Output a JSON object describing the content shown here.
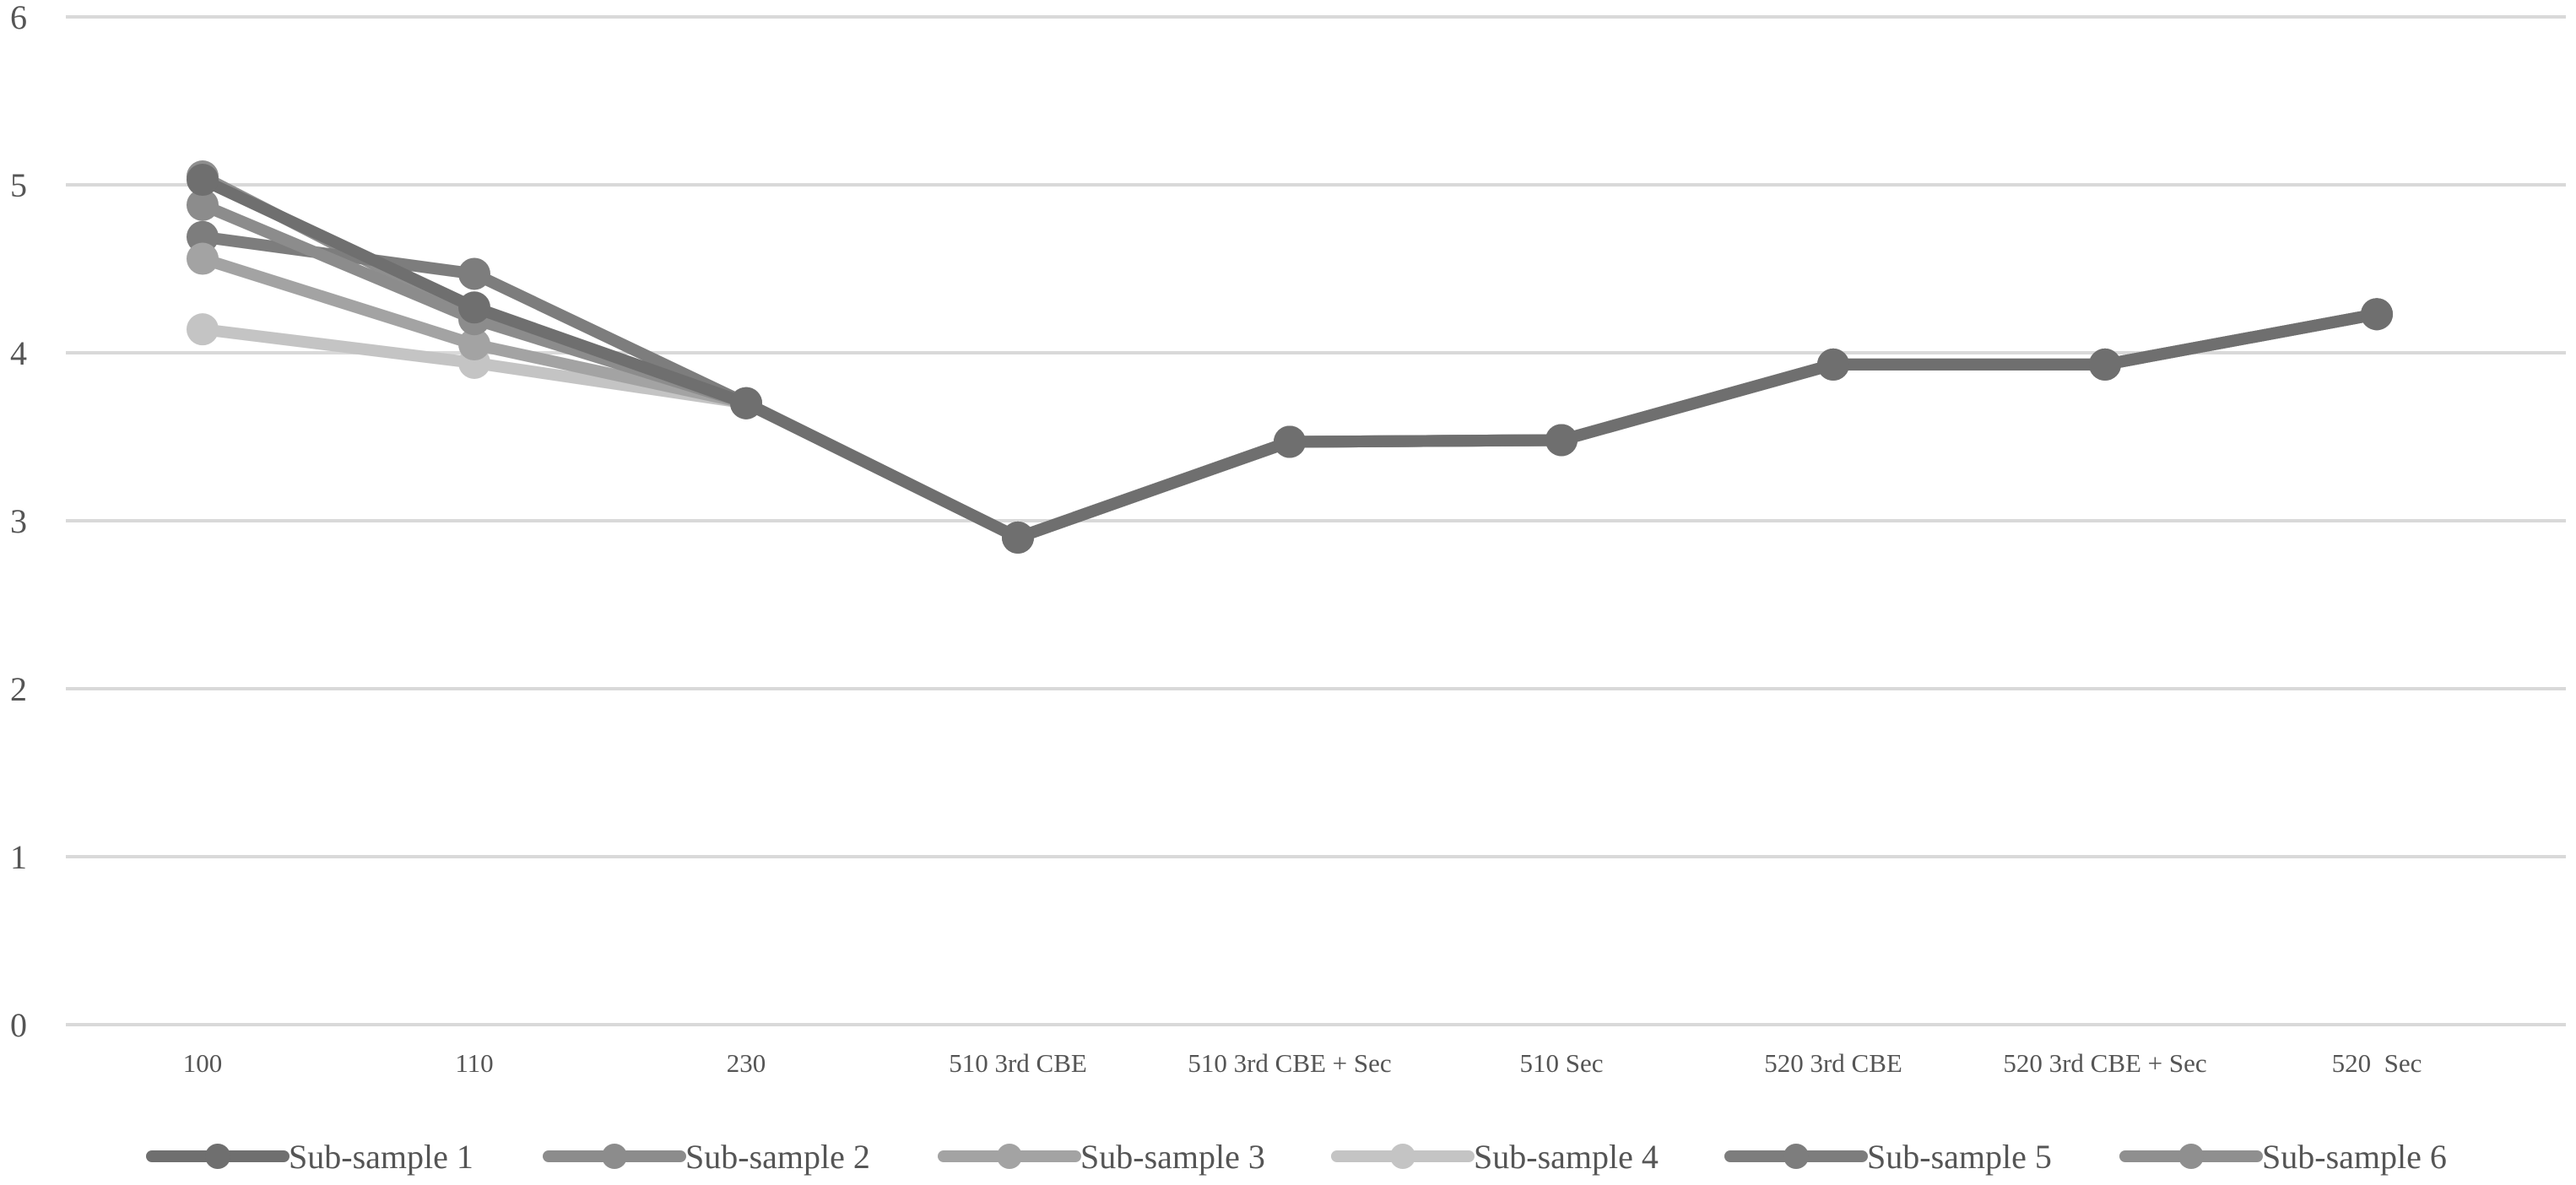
{
  "chart_data": {
    "type": "line",
    "categories": [
      "100",
      "110",
      "230",
      "510 3rd CBE",
      "510 3rd CBE + Sec",
      "510 Sec",
      "520 3rd CBE",
      "520 3rd CBE + Sec",
      "520  Sec"
    ],
    "ylim": [
      0,
      6
    ],
    "yticks": [
      "0",
      "1",
      "2",
      "3",
      "4",
      "5",
      "6"
    ],
    "grid": true,
    "legend_position": "bottom",
    "series": [
      {
        "name": "Sub-sample 1",
        "color": "#6f6f6f",
        "values": [
          5.03,
          4.27,
          3.7,
          2.9,
          3.47,
          3.48,
          3.93,
          3.93,
          4.23
        ]
      },
      {
        "name": "Sub-sample 2",
        "color": "#8c8c8c",
        "values": [
          4.88,
          4.2,
          3.7,
          2.9,
          3.47,
          3.48,
          3.93,
          3.93,
          4.23
        ]
      },
      {
        "name": "Sub-sample 3",
        "color": "#a3a3a3",
        "values": [
          4.56,
          4.05,
          3.7,
          2.9,
          3.47,
          3.48,
          3.93,
          3.93,
          4.23
        ]
      },
      {
        "name": "Sub-sample 4",
        "color": "#c4c4c4",
        "values": [
          4.14,
          3.94,
          3.7,
          2.9,
          3.47,
          3.48,
          3.93,
          3.93,
          4.23
        ]
      },
      {
        "name": "Sub-sample 5",
        "color": "#7d7d7d",
        "values": [
          4.69,
          4.47,
          3.7,
          2.9,
          3.47,
          3.48,
          3.93,
          3.93,
          4.23
        ]
      },
      {
        "name": "Sub-sample 6",
        "color": "#8f8f8f",
        "values": [
          5.05,
          4.22,
          3.7,
          2.9,
          3.47,
          3.48,
          3.93,
          3.93,
          4.23
        ]
      }
    ]
  }
}
